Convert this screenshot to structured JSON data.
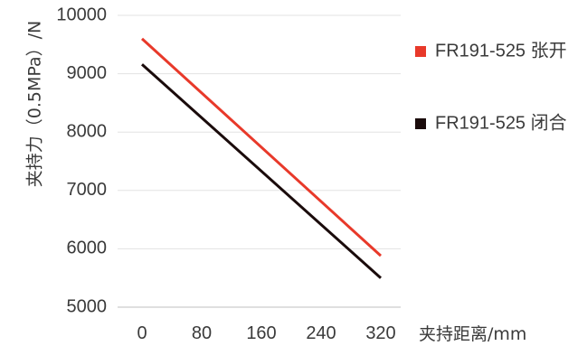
{
  "chart_data": {
    "type": "line",
    "ylabel": "夹持力（0.5MPa）/N",
    "xlabel": "夹持距离/mm",
    "x": [
      0,
      320
    ],
    "x_ticks": [
      "0",
      "80",
      "160",
      "240",
      "320"
    ],
    "y_ticks": [
      "5000",
      "6000",
      "7000",
      "8000",
      "9000",
      "10000"
    ],
    "ylim": [
      5000,
      10000
    ],
    "xlim": [
      0,
      320
    ],
    "grid": "horizontal",
    "legend_position": "right",
    "series": [
      {
        "name": "FR191-525  张开",
        "color": "#e8392a",
        "values": [
          9600,
          5880
        ]
      },
      {
        "name": "FR191-525  闭合",
        "color": "#1a0b0b",
        "values": [
          9160,
          5500
        ]
      }
    ]
  }
}
